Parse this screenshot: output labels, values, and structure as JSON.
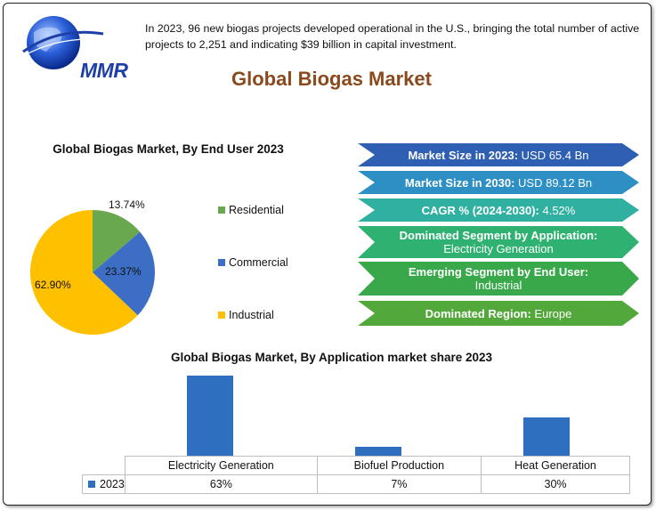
{
  "logo": {
    "text": "MMR"
  },
  "intro_text": "In 2023, 96 new biogas projects developed operational in the U.S., bringing the total number of active projects to 2,251 and indicating $39 billion in capital investment.",
  "main_title": "Global Biogas Market",
  "pie_title": "Global Biogas Market, By End User 2023",
  "banners": [
    {
      "bold": "Market Size in 2023:",
      "rest": " USD 65.4 Bn",
      "color": "#2f5fb3"
    },
    {
      "bold": "Market Size in 2030:",
      "rest": " USD 89.12 Bn",
      "color": "#2d8fc4"
    },
    {
      "bold": "CAGR % (2024-2030):",
      "rest": " 4.52%",
      "color": "#2fb0a0"
    },
    {
      "bold": "Dominated Segment by Application:",
      "rest": "Electricity Generation",
      "color": "#2fb271"
    },
    {
      "bold": "Emerging Segment by End User:",
      "rest": "Industrial",
      "color": "#39a84b"
    },
    {
      "bold": "Dominated Region:",
      "rest": " Europe",
      "color": "#52a83a"
    }
  ],
  "bar_title": "Global Biogas Market, By Application market share  2023",
  "chart_data": [
    {
      "type": "pie",
      "title": "Global Biogas Market, By End User 2023",
      "categories": [
        "Residential",
        "Commercial",
        "Industrial"
      ],
      "values": [
        13.74,
        23.37,
        62.9
      ],
      "labels": [
        "13.74%",
        "23.37%",
        "62.90%"
      ],
      "colors": [
        "#6aa84f",
        "#3b6ec4",
        "#ffc000"
      ],
      "legend": "right"
    },
    {
      "type": "bar",
      "title": "Global Biogas Market, By Application market share  2023",
      "categories": [
        "Electricity Generation",
        "Biofuel Production",
        "Heat Generation"
      ],
      "series": [
        {
          "name": "2023",
          "values": [
            63,
            7,
            30
          ],
          "labels": [
            "63%",
            "7%",
            "30%"
          ],
          "color": "#2e6fbf"
        }
      ],
      "ylim": [
        0,
        63
      ]
    }
  ]
}
